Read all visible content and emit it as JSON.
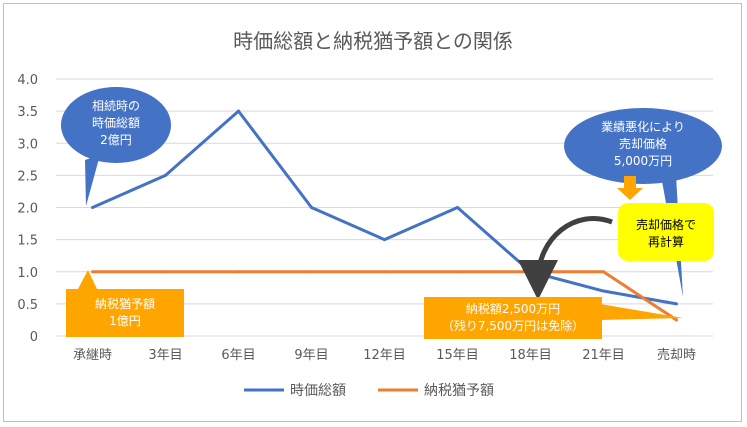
{
  "chart_data": {
    "type": "line",
    "title": "時価総額と納税猶予額との関係",
    "xlabel": "",
    "ylabel": "",
    "categories": [
      "承継時",
      "3年目",
      "6年目",
      "9年目",
      "12年目",
      "15年目",
      "18年目",
      "21年目",
      "売却時"
    ],
    "ylim": [
      0,
      4.0
    ],
    "yticks": [
      "0",
      "0.5",
      "1.0",
      "1.5",
      "2.0",
      "2.5",
      "3.0",
      "3.5",
      "4.0"
    ],
    "grid": true,
    "legend_position": "bottom",
    "series": [
      {
        "name": "時価総額",
        "color": "#4472c4",
        "values": [
          2.0,
          2.5,
          3.5,
          2.0,
          1.5,
          2.0,
          1.0,
          0.7,
          0.5
        ]
      },
      {
        "name": "納税猶予額",
        "color": "#ed7d31",
        "values": [
          1.0,
          1.0,
          1.0,
          1.0,
          1.0,
          1.0,
          1.0,
          1.0,
          0.25
        ]
      }
    ],
    "annotations": {
      "callout_start_value": {
        "lines": [
          "相続時の",
          "時価総額",
          "2億円"
        ],
        "color": "#4472c4"
      },
      "callout_sale_price": {
        "lines": [
          "業績悪化により",
          "売却価格",
          "5,000万円"
        ],
        "color": "#4472c4"
      },
      "callout_recalc": {
        "lines": [
          "売却価格で",
          "再計算"
        ],
        "color": "#ffff00"
      },
      "callout_deferred": {
        "lines": [
          "納税猶予額",
          "1億円"
        ],
        "color": "#ffa500"
      },
      "callout_tax": {
        "lines": [
          "納税額2,500万円",
          "（残り7,500万円は免除）"
        ],
        "color": "#ffa500"
      }
    }
  }
}
